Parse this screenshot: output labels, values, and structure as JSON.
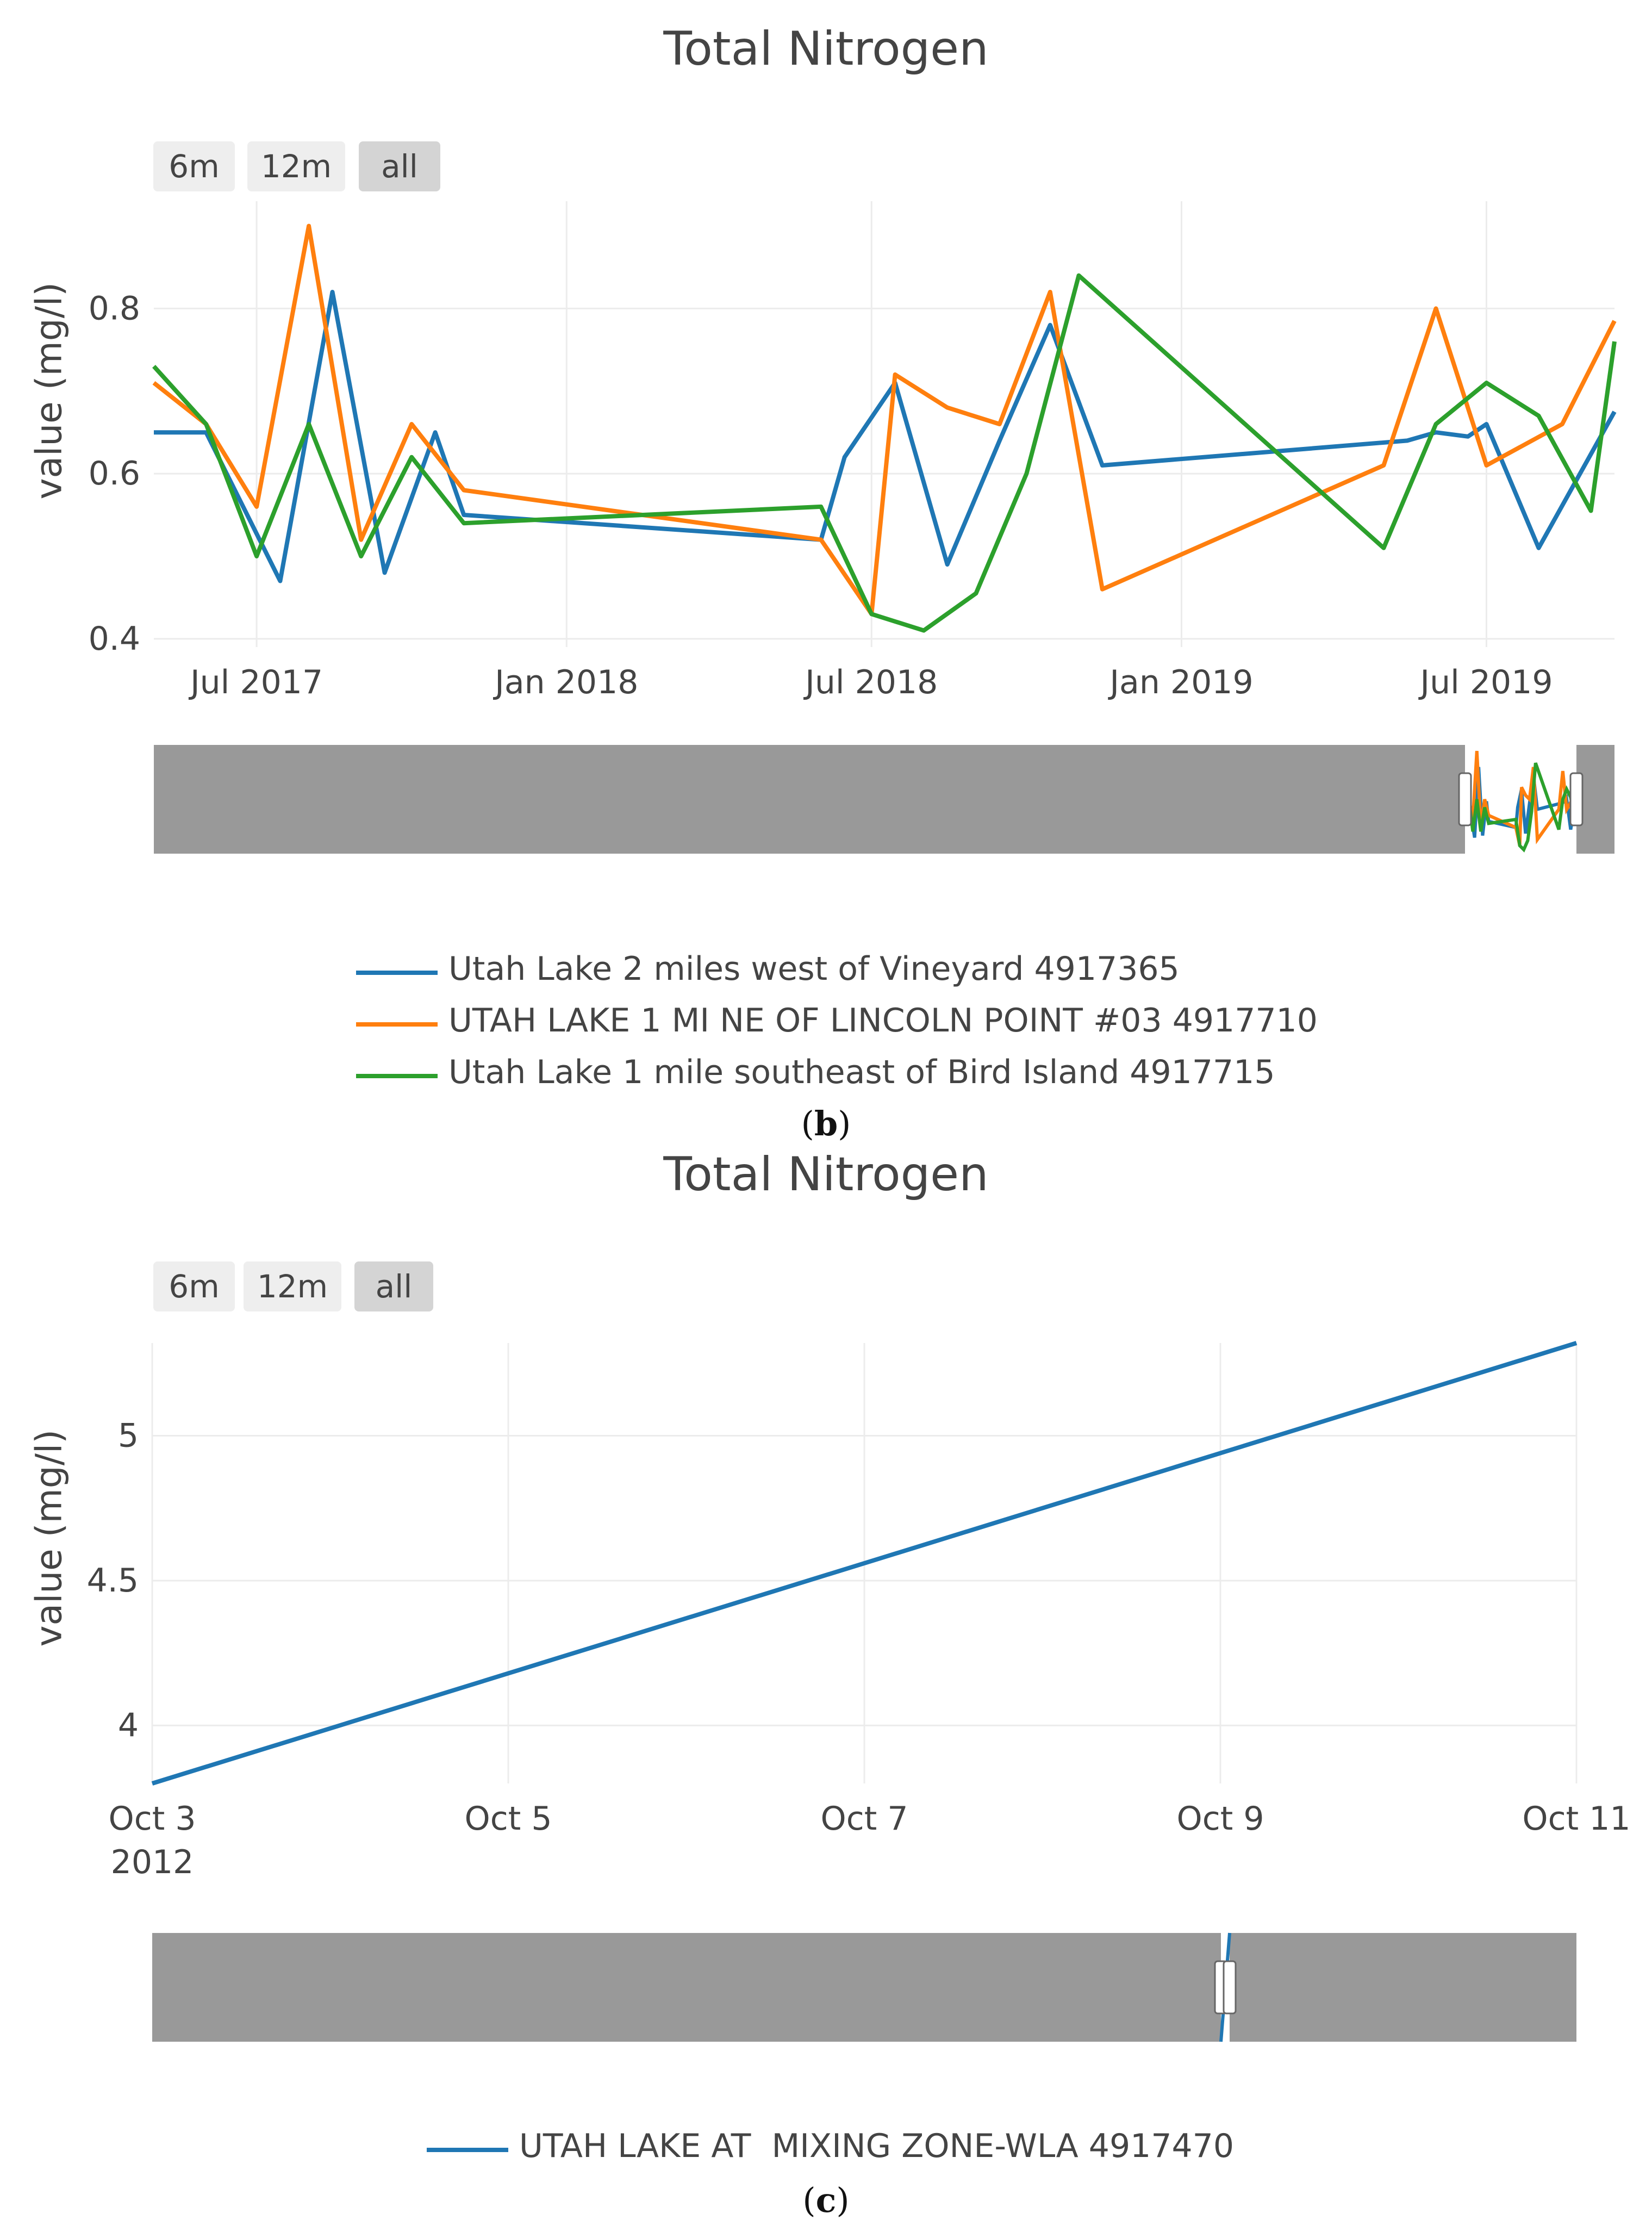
{
  "chart_data": [
    {
      "type": "line",
      "title": "Total Nitrogen",
      "panel_label": "b",
      "range_buttons": [
        "6m",
        "12m",
        "all"
      ],
      "active_button": "all",
      "xlabel": "",
      "ylabel": "value (mg/l)",
      "ylim": [
        0.39,
        0.93
      ],
      "yticks": [
        0.4,
        0.6,
        0.8
      ],
      "ytick_labels": [
        "0.4",
        "0.6",
        "0.8"
      ],
      "xlim": [
        "2017-05-01",
        "2019-09-15"
      ],
      "xticks": [
        "2017-07-01",
        "2018-01-01",
        "2018-07-01",
        "2019-01-01",
        "2019-07-01"
      ],
      "xtick_labels": [
        "Jul 2017",
        "Jan 2018",
        "Jul 2018",
        "Jan 2019",
        "Jul 2019"
      ],
      "grid": true,
      "legend_position": "bottom-center",
      "series": [
        {
          "name": "Utah Lake 2 miles west of Vineyard 4917365",
          "color": "#1f77b4",
          "x": [
            "2017-05-01",
            "2017-06-01",
            "2017-07-15",
            "2017-08-15",
            "2017-09-15",
            "2017-10-15",
            "2017-11-01",
            "2018-06-01",
            "2018-06-15",
            "2018-07-15",
            "2018-08-15",
            "2018-09-15",
            "2018-10-15",
            "2018-11-15",
            "2019-05-15",
            "2019-06-01",
            "2019-06-20",
            "2019-07-01",
            "2019-08-01",
            "2019-09-15"
          ],
          "y": [
            0.65,
            0.65,
            0.47,
            0.82,
            0.48,
            0.65,
            0.55,
            0.52,
            0.62,
            0.71,
            0.49,
            0.64,
            0.78,
            0.61,
            0.64,
            0.65,
            0.645,
            0.66,
            0.51,
            0.675
          ]
        },
        {
          "name": "UTAH LAKE 1 MI NE OF LINCOLN POINT #03 4917710",
          "color": "#ff7f0e",
          "x": [
            "2017-05-01",
            "2017-06-01",
            "2017-07-01",
            "2017-08-01",
            "2017-09-01",
            "2017-10-01",
            "2017-11-01",
            "2018-06-01",
            "2018-07-01",
            "2018-07-15",
            "2018-08-15",
            "2018-09-15",
            "2018-10-15",
            "2018-11-15",
            "2019-05-01",
            "2019-06-01",
            "2019-07-01",
            "2019-08-15",
            "2019-09-15"
          ],
          "y": [
            0.71,
            0.66,
            0.56,
            0.9,
            0.52,
            0.66,
            0.58,
            0.52,
            0.43,
            0.72,
            0.68,
            0.66,
            0.82,
            0.46,
            0.61,
            0.8,
            0.61,
            0.66,
            0.785
          ]
        },
        {
          "name": "Utah Lake 1 mile southeast of Bird Island 4917715",
          "color": "#2ca02c",
          "x": [
            "2017-05-01",
            "2017-06-01",
            "2017-07-01",
            "2017-08-01",
            "2017-09-01",
            "2017-10-01",
            "2017-11-01",
            "2018-06-01",
            "2018-07-01",
            "2018-08-01",
            "2018-09-01",
            "2018-10-01",
            "2018-11-01",
            "2019-05-01",
            "2019-06-01",
            "2019-07-01",
            "2019-08-01",
            "2019-09-01",
            "2019-09-15"
          ],
          "y": [
            0.73,
            0.66,
            0.5,
            0.66,
            0.5,
            0.62,
            0.54,
            0.56,
            0.43,
            0.41,
            0.455,
            0.6,
            0.84,
            0.51,
            0.66,
            0.71,
            0.67,
            0.555,
            0.76
          ]
        }
      ]
    },
    {
      "type": "line",
      "title": "Total Nitrogen",
      "panel_label": "c",
      "range_buttons": [
        "6m",
        "12m",
        "all"
      ],
      "active_button": "all",
      "xlabel": "",
      "ylabel": "value (mg/l)",
      "ylim": [
        3.8,
        5.32
      ],
      "yticks": [
        4,
        4.5,
        5
      ],
      "ytick_labels": [
        "4",
        "4.5",
        "5"
      ],
      "xlim": [
        "2012-10-03",
        "2012-10-11"
      ],
      "xticks": [
        "2012-10-03",
        "2012-10-05",
        "2012-10-07",
        "2012-10-09",
        "2012-10-11"
      ],
      "xtick_labels": [
        "Oct 3",
        "Oct 5",
        "Oct 7",
        "Oct 9",
        "Oct 11"
      ],
      "xtick_year": "2012",
      "grid": true,
      "legend_position": "bottom-center",
      "series": [
        {
          "name": "UTAH LAKE AT  MIXING ZONE-WLA 4917470",
          "color": "#1f77b4",
          "x": [
            "2012-10-03",
            "2012-10-11"
          ],
          "y": [
            3.8,
            5.32
          ]
        }
      ]
    }
  ]
}
